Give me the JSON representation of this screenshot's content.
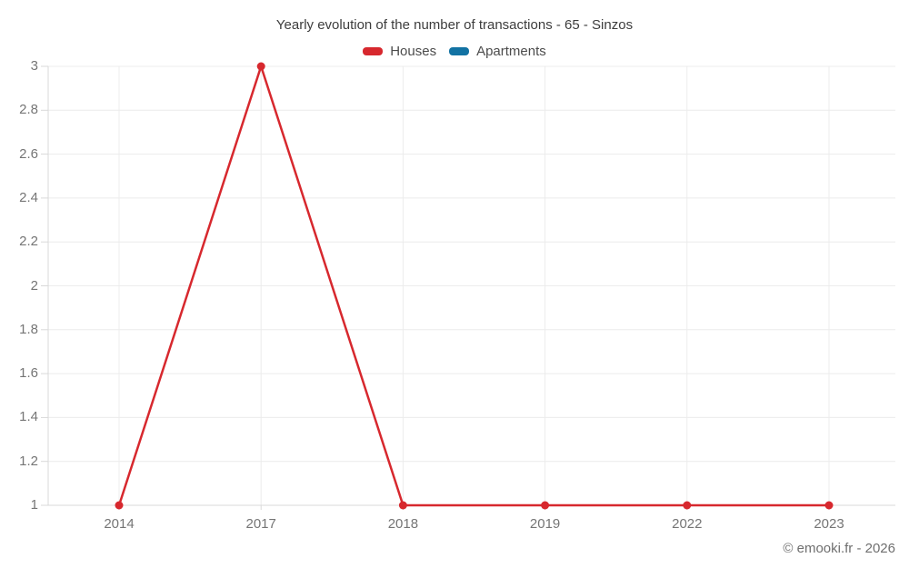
{
  "title": "Yearly evolution of the number of transactions - 65 - Sinzos",
  "footer": "© emooki.fr - 2026",
  "colors": {
    "houses": "#d7282e",
    "apartments": "#1272a3",
    "grid": "#ececec",
    "axis": "#d9d9d9",
    "tick_text": "#757575"
  },
  "chart_data": {
    "type": "line",
    "title": "Yearly evolution of the number of transactions - 65 - Sinzos",
    "categories": [
      "2014",
      "2017",
      "2018",
      "2019",
      "2022",
      "2023"
    ],
    "series": [
      {
        "name": "Houses",
        "color": "#d7282e",
        "values": [
          1,
          3,
          1,
          1,
          1,
          1
        ]
      },
      {
        "name": "Apartments",
        "color": "#1272a3",
        "values": []
      }
    ],
    "xlabel": "",
    "ylabel": "",
    "ylim": [
      1,
      3
    ],
    "yticks": [
      1,
      1.2,
      1.4,
      1.6,
      1.8,
      2,
      2.2,
      2.4,
      2.6,
      2.8,
      3
    ],
    "grid": true,
    "legend_position": "top",
    "marker_radius": 4.5,
    "line_width": 2.5
  }
}
